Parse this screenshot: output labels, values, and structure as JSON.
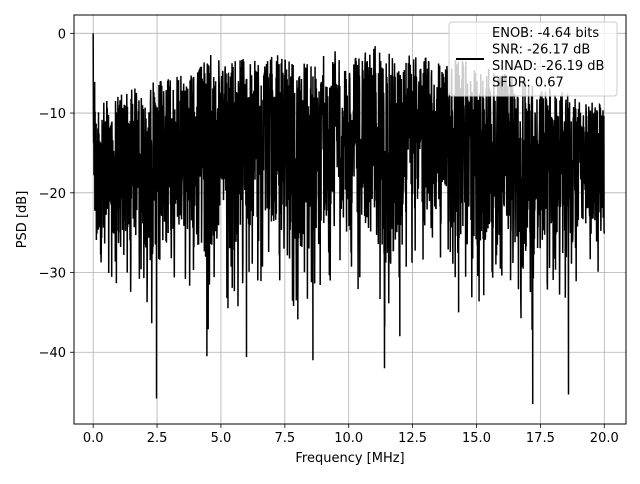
{
  "chart_data": {
    "type": "line",
    "title": "",
    "xlabel": "Frequency [MHz]",
    "ylabel": "PSD [dB]",
    "xlim": [
      -0.75,
      20.85
    ],
    "ylim": [
      -49.0,
      2.3
    ],
    "xticks": [
      0.0,
      2.5,
      5.0,
      7.5,
      10.0,
      12.5,
      15.0,
      17.5,
      20.0
    ],
    "xtick_labels": [
      "0.0",
      "2.5",
      "5.0",
      "7.5",
      "10.0",
      "12.5",
      "15.0",
      "17.5",
      "20.0"
    ],
    "yticks": [
      0,
      -10,
      -20,
      -30,
      -40
    ],
    "ytick_labels": [
      "0",
      "−10",
      "−20",
      "−30",
      "−40"
    ],
    "grid": true,
    "legend_position": "top-right",
    "series": [
      {
        "color": "#000000",
        "x_range": [
          0.0,
          20.0
        ],
        "envelope_x": [
          0.0,
          0.05,
          0.1,
          0.25,
          0.5,
          0.75,
          1.0,
          1.5,
          2.0,
          2.5,
          3.0,
          3.5,
          4.0,
          4.5,
          5.0,
          5.5,
          6.0,
          6.5,
          7.0,
          7.5,
          8.0,
          8.5,
          9.0,
          9.5,
          10.0,
          10.5,
          11.0,
          11.5,
          12.0,
          12.5,
          13.0,
          13.5,
          14.0,
          14.5,
          15.0,
          15.5,
          16.0,
          16.5,
          17.0,
          17.5,
          18.0,
          18.5,
          19.0,
          19.5,
          20.0
        ],
        "envelope_max": [
          0.0,
          -3.5,
          -8.0,
          -9.0,
          -8.5,
          -8.0,
          -7.5,
          -7.0,
          -6.5,
          -6.0,
          -5.5,
          -5.0,
          -5.0,
          -2.5,
          -3.5,
          -3.5,
          -2.5,
          -2.0,
          -2.5,
          -3.0,
          -2.5,
          -3.0,
          -2.5,
          -2.0,
          -3.0,
          -2.0,
          -1.5,
          -2.5,
          -2.5,
          -2.0,
          -3.0,
          -3.5,
          -2.5,
          -3.5,
          -3.5,
          -4.0,
          -4.5,
          -5.5,
          -6.0,
          -6.5,
          -7.0,
          -7.5,
          -8.0,
          -8.5,
          -9.0
        ],
        "envelope_min": [
          -18.0,
          -29.0,
          -32.0,
          -35.0,
          -30.0,
          -31.0,
          -34.0,
          -33.0,
          -34.0,
          -40.0,
          -32.0,
          -31.0,
          -35.0,
          -38.0,
          -34.0,
          -37.0,
          -33.0,
          -32.0,
          -31.0,
          -31.0,
          -36.0,
          -34.0,
          -31.0,
          -31.0,
          -34.0,
          -32.0,
          -30.0,
          -39.0,
          -34.0,
          -30.0,
          -30.0,
          -29.0,
          -33.0,
          -34.0,
          -35.0,
          -33.0,
          -31.0,
          -34.0,
          -40.0,
          -34.0,
          -31.0,
          -36.0,
          -30.0,
          -29.0,
          -31.0
        ],
        "notable_points": [
          {
            "x": 0.0,
            "y": 0.0
          },
          {
            "x": 2.48,
            "y": -45.8
          },
          {
            "x": 4.45,
            "y": -40.5
          },
          {
            "x": 6.0,
            "y": -40.6
          },
          {
            "x": 11.4,
            "y": -42.0
          },
          {
            "x": 17.2,
            "y": -46.5
          },
          {
            "x": 18.6,
            "y": -45.3
          },
          {
            "x": 8.6,
            "y": -41.0
          },
          {
            "x": 12.0,
            "y": -38.0
          },
          {
            "x": 14.3,
            "y": -35.0
          }
        ]
      }
    ],
    "legend": {
      "lines": [
        "ENOB: -4.64 bits",
        "SNR: -26.17 dB",
        "SINAD: -26.19 dB",
        "SFDR: 0.67"
      ],
      "color": "#000000"
    }
  }
}
